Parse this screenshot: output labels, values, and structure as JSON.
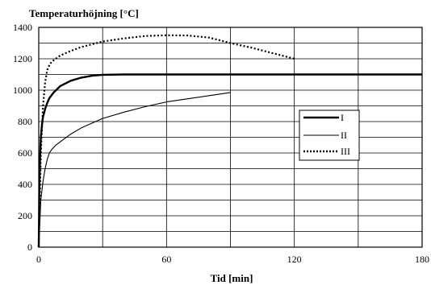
{
  "chart_data": {
    "type": "line",
    "title": "Temperaturhöjning [°C]",
    "xlabel": "Tid [min]",
    "ylabel": "",
    "xlim": [
      0,
      180
    ],
    "ylim": [
      0,
      1400
    ],
    "x_ticks": [
      0,
      60,
      120,
      180
    ],
    "y_ticks": [
      0,
      200,
      400,
      600,
      800,
      1000,
      1200,
      1400
    ],
    "x_grid": [
      0,
      30,
      60,
      90,
      120,
      150,
      180
    ],
    "y_grid": [
      0,
      100,
      200,
      300,
      400,
      500,
      600,
      700,
      800,
      900,
      1000,
      1100,
      1200,
      1300,
      1400
    ],
    "grid": true,
    "legend_position": "right",
    "series": [
      {
        "name": "I",
        "style": "thick-solid",
        "color": "#000000",
        "x": [
          0,
          0.3,
          0.7,
          1,
          1.5,
          2,
          3,
          4,
          5,
          7,
          10,
          15,
          20,
          25,
          30,
          40,
          60,
          90,
          120,
          150,
          180
        ],
        "y": [
          0,
          400,
          600,
          700,
          780,
          830,
          880,
          920,
          950,
          985,
          1025,
          1060,
          1080,
          1092,
          1098,
          1100,
          1100,
          1100,
          1100,
          1100,
          1100
        ]
      },
      {
        "name": "II",
        "style": "thin-solid",
        "color": "#000000",
        "x": [
          0,
          1,
          2,
          3,
          4,
          5,
          6,
          8,
          10,
          15,
          20,
          30,
          40,
          50,
          60,
          70,
          80,
          90
        ],
        "y": [
          0,
          300,
          420,
          500,
          560,
          600,
          620,
          650,
          670,
          720,
          760,
          820,
          860,
          895,
          925,
          945,
          965,
          985
        ]
      },
      {
        "name": "III",
        "style": "dotted",
        "color": "#000000",
        "x": [
          0,
          1,
          2,
          3,
          4,
          5,
          6,
          8,
          10,
          15,
          20,
          30,
          40,
          50,
          60,
          70,
          80,
          90,
          100,
          110,
          120
        ],
        "y": [
          0,
          600,
          900,
          1050,
          1130,
          1160,
          1180,
          1200,
          1220,
          1250,
          1275,
          1310,
          1330,
          1345,
          1350,
          1348,
          1335,
          1300,
          1270,
          1235,
          1200
        ]
      }
    ]
  }
}
